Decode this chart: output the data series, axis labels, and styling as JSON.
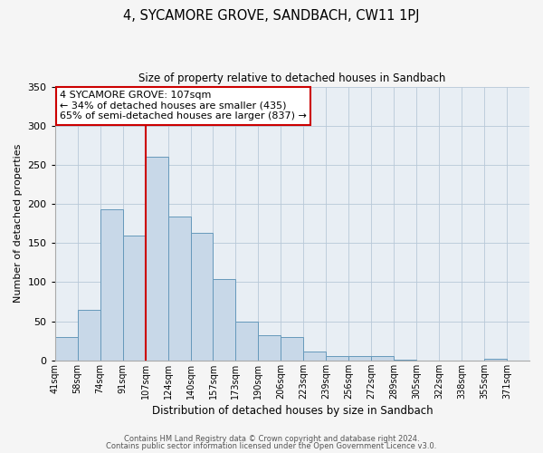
{
  "title": "4, SYCAMORE GROVE, SANDBACH, CW11 1PJ",
  "subtitle": "Size of property relative to detached houses in Sandbach",
  "xlabel": "Distribution of detached houses by size in Sandbach",
  "ylabel": "Number of detached properties",
  "bin_labels": [
    "41sqm",
    "58sqm",
    "74sqm",
    "91sqm",
    "107sqm",
    "124sqm",
    "140sqm",
    "157sqm",
    "173sqm",
    "190sqm",
    "206sqm",
    "223sqm",
    "239sqm",
    "256sqm",
    "272sqm",
    "289sqm",
    "305sqm",
    "322sqm",
    "338sqm",
    "355sqm",
    "371sqm"
  ],
  "bar_heights": [
    30,
    65,
    193,
    160,
    260,
    184,
    163,
    104,
    50,
    32,
    30,
    11,
    5,
    5,
    6,
    1,
    0,
    0,
    0,
    2,
    0
  ],
  "bar_color": "#c8d8e8",
  "bar_edge_color": "#6699bb",
  "vline_x_index": 4,
  "vline_color": "#cc0000",
  "annotation_text": "4 SYCAMORE GROVE: 107sqm\n← 34% of detached houses are smaller (435)\n65% of semi-detached houses are larger (837) →",
  "annotation_box_color": "#ffffff",
  "annotation_box_edge": "#cc0000",
  "ylim": [
    0,
    350
  ],
  "yticks": [
    0,
    50,
    100,
    150,
    200,
    250,
    300,
    350
  ],
  "footer1": "Contains HM Land Registry data © Crown copyright and database right 2024.",
  "footer2": "Contains public sector information licensed under the Open Government Licence v3.0.",
  "background_color": "#f5f5f5",
  "plot_bg_color": "#e8eef4"
}
